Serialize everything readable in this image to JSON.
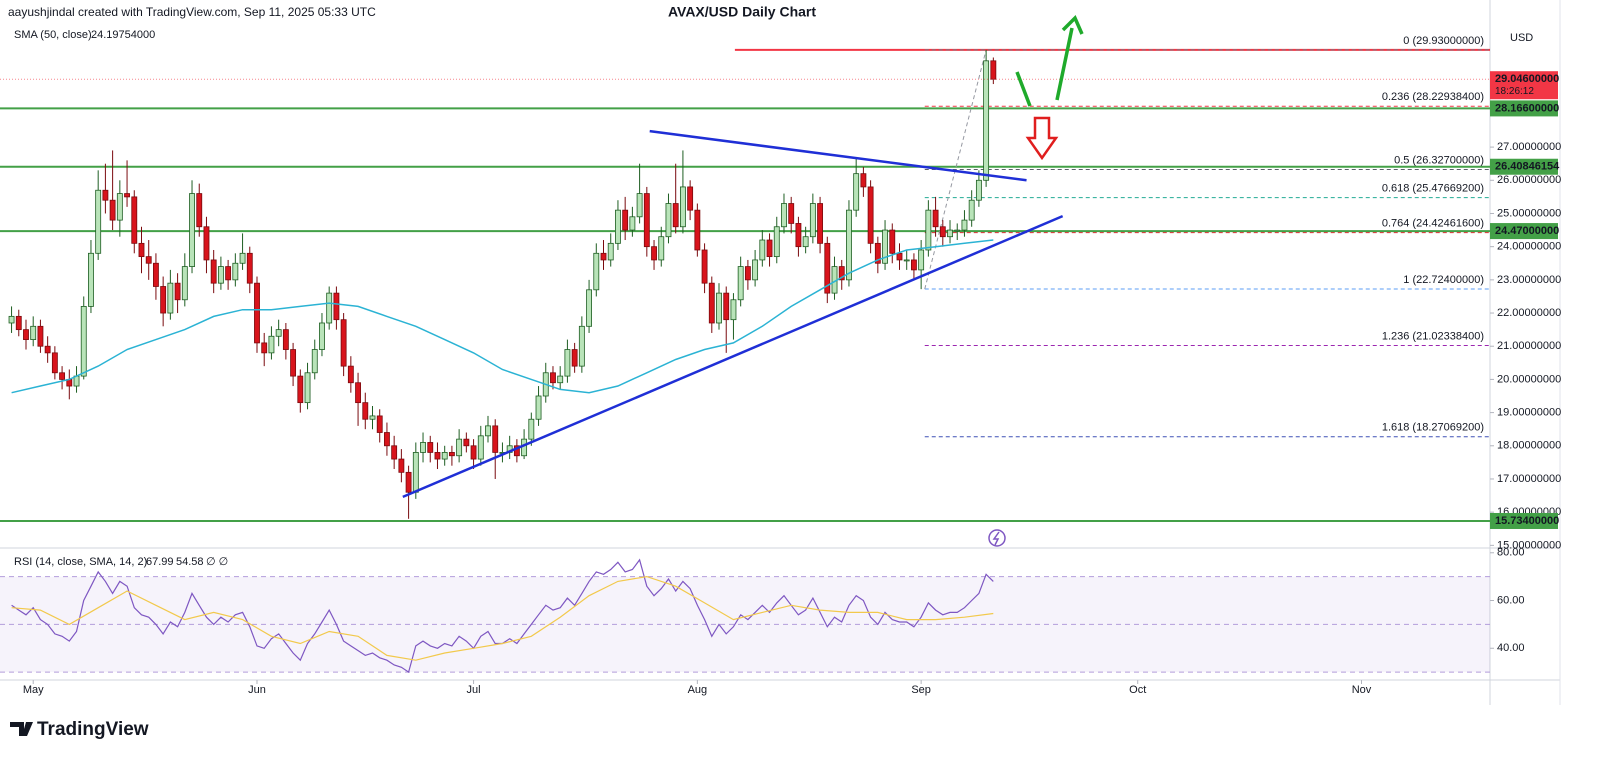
{
  "header": {
    "credit": "aayushjindal created with TradingView.com, Sep 11, 2025 05:33 UTC",
    "title": "AVAX/USD Daily Chart",
    "logo": "TradingView"
  },
  "chart_data": {
    "type": "candlestick",
    "currency": "USD",
    "up_color": "#b9e4b9",
    "up_border": "#1e5e22",
    "down_color": "#d8141c",
    "down_border": "#7a0a0e",
    "xlim": [
      -1.6,
      204.8
    ],
    "xticks": [
      {
        "value": 3,
        "label": "May"
      },
      {
        "value": 34,
        "label": "Jun"
      },
      {
        "value": 64,
        "label": "Jul"
      },
      {
        "value": 95,
        "label": "Aug"
      },
      {
        "value": 126,
        "label": "Sep"
      },
      {
        "value": 156,
        "label": "Oct"
      },
      {
        "value": 187,
        "label": "Nov"
      }
    ],
    "ylim": [
      14.92,
      30.83
    ],
    "yticks": [
      {
        "value": 15,
        "label": "15.00000000"
      },
      {
        "value": 16,
        "label": "16.00000000"
      },
      {
        "value": 17,
        "label": "17.00000000"
      },
      {
        "value": 18,
        "label": "18.00000000"
      },
      {
        "value": 19,
        "label": "19.00000000"
      },
      {
        "value": 20,
        "label": "20.00000000"
      },
      {
        "value": 21,
        "label": "21.00000000"
      },
      {
        "value": 22,
        "label": "22.00000000"
      },
      {
        "value": 23,
        "label": "23.00000000"
      },
      {
        "value": 24,
        "label": "24.00000000"
      },
      {
        "value": 25,
        "label": "25.00000000"
      },
      {
        "value": 26,
        "label": "26.00000000"
      },
      {
        "value": 27,
        "label": "27.00000000"
      }
    ],
    "ohlc": [
      [
        21.7,
        22.2,
        21.4,
        21.9
      ],
      [
        21.9,
        22.1,
        21.3,
        21.5
      ],
      [
        21.5,
        21.8,
        20.9,
        21.2
      ],
      [
        21.2,
        21.9,
        21.0,
        21.6
      ],
      [
        21.6,
        21.8,
        20.8,
        21.0
      ],
      [
        21.0,
        21.3,
        20.5,
        20.8
      ],
      [
        20.8,
        21.0,
        20.0,
        20.2
      ],
      [
        20.2,
        20.4,
        19.7,
        20.0
      ],
      [
        20.0,
        20.3,
        19.4,
        19.8
      ],
      [
        19.8,
        20.4,
        19.6,
        20.1
      ],
      [
        20.1,
        22.5,
        20.0,
        22.2
      ],
      [
        22.2,
        24.2,
        22.0,
        23.8
      ],
      [
        23.8,
        26.3,
        23.6,
        25.7
      ],
      [
        25.7,
        26.5,
        25.0,
        25.4
      ],
      [
        25.4,
        26.9,
        24.5,
        24.8
      ],
      [
        24.8,
        26.0,
        24.3,
        25.6
      ],
      [
        25.6,
        26.6,
        25.2,
        25.5
      ],
      [
        25.5,
        25.7,
        23.8,
        24.1
      ],
      [
        24.1,
        24.6,
        23.2,
        23.7
      ],
      [
        23.7,
        24.2,
        23.0,
        23.5
      ],
      [
        23.5,
        23.8,
        22.4,
        22.8
      ],
      [
        22.8,
        23.1,
        21.6,
        22.0
      ],
      [
        22.0,
        23.3,
        21.8,
        22.9
      ],
      [
        22.9,
        23.2,
        22.0,
        22.4
      ],
      [
        22.4,
        23.8,
        22.2,
        23.4
      ],
      [
        23.4,
        26.0,
        23.2,
        25.6
      ],
      [
        25.6,
        25.9,
        24.3,
        24.6
      ],
      [
        24.6,
        24.9,
        23.2,
        23.6
      ],
      [
        23.6,
        23.9,
        22.6,
        22.9
      ],
      [
        22.9,
        23.7,
        22.7,
        23.4
      ],
      [
        23.4,
        23.6,
        22.7,
        23.0
      ],
      [
        23.0,
        23.8,
        22.8,
        23.5
      ],
      [
        23.5,
        24.4,
        23.3,
        23.8
      ],
      [
        23.8,
        24.0,
        22.6,
        22.9
      ],
      [
        22.9,
        23.1,
        20.8,
        21.1
      ],
      [
        21.1,
        21.4,
        20.4,
        20.8
      ],
      [
        20.8,
        21.6,
        20.6,
        21.3
      ],
      [
        21.3,
        21.8,
        21.0,
        21.5
      ],
      [
        21.5,
        21.7,
        20.6,
        20.9
      ],
      [
        20.9,
        21.1,
        19.8,
        20.1
      ],
      [
        20.1,
        20.3,
        19.0,
        19.3
      ],
      [
        19.3,
        20.5,
        19.1,
        20.2
      ],
      [
        20.2,
        21.2,
        20.0,
        20.9
      ],
      [
        20.9,
        22.0,
        20.7,
        21.7
      ],
      [
        21.7,
        22.8,
        21.5,
        22.6
      ],
      [
        22.6,
        22.8,
        21.5,
        21.8
      ],
      [
        21.8,
        22.0,
        20.1,
        20.4
      ],
      [
        20.4,
        20.7,
        19.6,
        19.9
      ],
      [
        19.9,
        20.2,
        18.6,
        19.3
      ],
      [
        19.3,
        19.6,
        18.5,
        18.8
      ],
      [
        18.8,
        19.2,
        18.5,
        18.9
      ],
      [
        18.9,
        19.1,
        18.1,
        18.4
      ],
      [
        18.4,
        18.7,
        17.7,
        18.0
      ],
      [
        18.0,
        18.3,
        17.3,
        17.6
      ],
      [
        17.6,
        17.9,
        16.9,
        17.2
      ],
      [
        17.2,
        17.4,
        15.8,
        16.6
      ],
      [
        16.6,
        18.1,
        16.4,
        17.8
      ],
      [
        17.8,
        18.4,
        17.5,
        18.1
      ],
      [
        18.1,
        18.3,
        17.5,
        17.8
      ],
      [
        17.8,
        18.1,
        17.3,
        17.6
      ],
      [
        17.6,
        18.0,
        17.4,
        17.8
      ],
      [
        17.8,
        18.0,
        17.4,
        17.7
      ],
      [
        17.7,
        18.5,
        17.5,
        18.2
      ],
      [
        18.2,
        18.4,
        17.8,
        18.0
      ],
      [
        18.0,
        18.2,
        17.3,
        17.6
      ],
      [
        17.6,
        18.6,
        17.4,
        18.3
      ],
      [
        18.3,
        18.9,
        18.1,
        18.6
      ],
      [
        18.6,
        18.8,
        17.0,
        17.8
      ],
      [
        17.8,
        18.1,
        17.5,
        17.8
      ],
      [
        17.8,
        18.3,
        17.6,
        18.0
      ],
      [
        18.0,
        18.2,
        17.5,
        17.7
      ],
      [
        17.7,
        18.5,
        17.6,
        18.2
      ],
      [
        18.2,
        19.0,
        18.0,
        18.8
      ],
      [
        18.8,
        19.8,
        18.6,
        19.5
      ],
      [
        19.5,
        20.5,
        19.3,
        20.2
      ],
      [
        20.2,
        20.4,
        19.7,
        19.9
      ],
      [
        19.9,
        20.4,
        19.7,
        20.1
      ],
      [
        20.1,
        21.2,
        19.9,
        20.9
      ],
      [
        20.9,
        21.1,
        20.2,
        20.4
      ],
      [
        20.4,
        21.9,
        20.2,
        21.6
      ],
      [
        21.6,
        23.0,
        21.4,
        22.7
      ],
      [
        22.7,
        24.1,
        22.5,
        23.8
      ],
      [
        23.8,
        24.2,
        23.3,
        23.6
      ],
      [
        23.6,
        24.4,
        23.4,
        24.1
      ],
      [
        24.1,
        25.4,
        23.9,
        25.1
      ],
      [
        25.1,
        25.5,
        24.2,
        24.5
      ],
      [
        24.5,
        25.2,
        24.3,
        24.9
      ],
      [
        24.9,
        26.5,
        24.7,
        25.6
      ],
      [
        25.6,
        25.8,
        23.7,
        24.0
      ],
      [
        24.0,
        24.2,
        23.3,
        23.6
      ],
      [
        23.6,
        24.6,
        23.4,
        24.3
      ],
      [
        24.3,
        25.6,
        24.1,
        25.3
      ],
      [
        25.3,
        26.5,
        24.4,
        24.6
      ],
      [
        24.6,
        26.9,
        24.4,
        25.8
      ],
      [
        25.8,
        26.0,
        24.8,
        25.1
      ],
      [
        25.1,
        25.3,
        23.7,
        23.9
      ],
      [
        23.9,
        24.1,
        22.6,
        22.9
      ],
      [
        22.9,
        23.1,
        21.4,
        21.7
      ],
      [
        21.7,
        22.9,
        21.5,
        22.6
      ],
      [
        22.6,
        22.8,
        20.8,
        21.8
      ],
      [
        21.8,
        22.6,
        21.2,
        22.4
      ],
      [
        22.4,
        23.7,
        22.2,
        23.4
      ],
      [
        23.4,
        23.6,
        22.7,
        23.0
      ],
      [
        23.0,
        23.9,
        22.8,
        23.6
      ],
      [
        23.6,
        24.5,
        23.4,
        24.2
      ],
      [
        24.2,
        24.4,
        23.4,
        23.7
      ],
      [
        23.7,
        24.9,
        23.5,
        24.6
      ],
      [
        24.6,
        25.6,
        24.4,
        25.3
      ],
      [
        25.3,
        25.5,
        24.4,
        24.7
      ],
      [
        24.7,
        24.9,
        23.7,
        24.0
      ],
      [
        24.0,
        24.6,
        23.8,
        24.3
      ],
      [
        24.3,
        25.6,
        24.1,
        25.3
      ],
      [
        25.3,
        25.5,
        23.8,
        24.1
      ],
      [
        24.1,
        24.3,
        22.3,
        22.6
      ],
      [
        22.6,
        23.7,
        22.4,
        23.4
      ],
      [
        23.4,
        23.6,
        22.7,
        23.0
      ],
      [
        23.0,
        25.4,
        22.8,
        25.1
      ],
      [
        25.1,
        26.7,
        24.9,
        26.2
      ],
      [
        26.2,
        26.4,
        25.5,
        25.8
      ],
      [
        25.8,
        26.0,
        23.8,
        24.1
      ],
      [
        24.1,
        24.3,
        23.2,
        23.5
      ],
      [
        23.5,
        24.8,
        23.3,
        24.5
      ],
      [
        24.5,
        24.7,
        23.5,
        23.8
      ],
      [
        23.8,
        24.1,
        23.3,
        23.6
      ],
      [
        23.6,
        23.9,
        23.3,
        23.6
      ],
      [
        23.6,
        23.8,
        23.0,
        23.3
      ],
      [
        23.3,
        24.2,
        22.72,
        23.9
      ],
      [
        23.9,
        25.4,
        23.7,
        25.1
      ],
      [
        25.1,
        25.5,
        24.3,
        24.6
      ],
      [
        24.6,
        24.8,
        24.0,
        24.3
      ],
      [
        24.3,
        24.8,
        24.1,
        24.5
      ],
      [
        24.5,
        24.7,
        24.2,
        24.5
      ],
      [
        24.5,
        25.1,
        24.3,
        24.8
      ],
      [
        24.8,
        25.7,
        24.6,
        25.4
      ],
      [
        25.4,
        26.3,
        25.2,
        26.0
      ],
      [
        26.0,
        29.93,
        25.8,
        29.6
      ],
      [
        29.6,
        29.7,
        28.9,
        29.046
      ]
    ],
    "sma": {
      "name": "SMA (50, close)",
      "value": {
        "value": 24.19754,
        "label": "24.19754000"
      },
      "color": "#2bb3d4",
      "x": [
        0,
        4,
        8,
        12,
        16,
        20,
        24,
        28,
        32,
        36,
        40,
        44,
        48,
        52,
        56,
        60,
        64,
        68,
        72,
        76,
        80,
        84,
        88,
        92,
        96,
        100,
        104,
        108,
        112,
        116,
        120,
        124,
        128,
        132,
        136
      ],
      "values": [
        19.6,
        19.8,
        20.0,
        20.4,
        20.9,
        21.2,
        21.5,
        21.9,
        22.1,
        22.1,
        22.2,
        22.3,
        22.2,
        21.9,
        21.6,
        21.2,
        20.8,
        20.3,
        20.0,
        19.7,
        19.6,
        19.8,
        20.2,
        20.6,
        20.9,
        21.1,
        21.6,
        22.2,
        22.7,
        23.2,
        23.6,
        23.9,
        24.0,
        24.1,
        24.2
      ]
    },
    "last_price": {
      "value": 29.046,
      "label": "29.04600000",
      "countdown": "18:26:12",
      "color": "#f23645"
    },
    "levels": [
      {
        "value": 28.166,
        "label": "28.16600000",
        "color": "#43a047"
      },
      {
        "value": 26.40846154,
        "label": "26.40846154",
        "color": "#43a047"
      },
      {
        "value": 24.47,
        "label": "24.47000000",
        "color": "#43a047"
      },
      {
        "value": 15.734,
        "label": "15.73400000",
        "color": "#43a047"
      }
    ],
    "resistance": {
      "value": 29.93,
      "start": 100.2,
      "color": "#f23645"
    },
    "fib": {
      "start": 126.5,
      "levels": [
        {
          "label": "0 (29.93000000)",
          "price": 29.93,
          "color": "#787b86"
        },
        {
          "label": "0.236 (28.22938400)",
          "price": 28.229384,
          "color": "#f23645"
        },
        {
          "label": "0.5 (26.32700000)",
          "price": 26.327,
          "color": "#5d606b"
        },
        {
          "label": "0.618 (25.47669200)",
          "price": 25.476692,
          "color": "#22ab94"
        },
        {
          "label": "0.764 (24.42461600)",
          "price": 24.424616,
          "color": "#d32f2f"
        },
        {
          "label": "1 (22.72400000)",
          "price": 22.724,
          "color": "#5b9cf6"
        },
        {
          "label": "1.236 (21.02338400)",
          "price": 21.023384,
          "color": "#9c27b0"
        },
        {
          "label": "1.618 (18.27069200)",
          "price": 18.270692,
          "color": "#3f51b5"
        }
      ]
    },
    "trendlines": [
      {
        "points": [
          [
            88.4,
            27.48
          ],
          [
            140.6,
            26.0
          ]
        ],
        "color": "#1f2fd6"
      },
      {
        "points": [
          [
            54.2,
            16.46
          ],
          [
            145.6,
            24.92
          ]
        ],
        "color": "#1f2fd6"
      }
    ],
    "rsi": {
      "name": "RSI (14, close, SMA, 14, 2)",
      "value": 67.99,
      "ma_value": 54.58,
      "extra": "∅ ∅",
      "color": "#7e57c2",
      "ma_color": "#f2c94c",
      "ylim": [
        26.7,
        82
      ],
      "yticks": [
        {
          "value": 80,
          "label": "80.00"
        },
        {
          "value": 60,
          "label": "60.00"
        },
        {
          "value": 40,
          "label": "40.00"
        }
      ],
      "bands": [
        70,
        50,
        30
      ],
      "values": [
        58,
        56,
        54,
        57,
        52,
        50,
        46,
        45,
        43,
        47,
        60,
        66,
        72,
        68,
        63,
        68,
        66,
        57,
        54,
        53,
        50,
        46,
        51,
        49,
        55,
        63,
        58,
        53,
        50,
        53,
        51,
        54,
        55,
        49,
        41,
        40,
        44,
        46,
        42,
        38,
        35,
        42,
        46,
        51,
        56,
        50,
        43,
        41,
        39,
        37,
        38,
        36,
        35,
        33,
        32,
        30,
        41,
        43,
        41,
        40,
        42,
        41,
        45,
        43,
        40,
        45,
        47,
        42,
        42,
        44,
        42,
        46,
        50,
        54,
        58,
        56,
        57,
        61,
        58,
        63,
        68,
        72,
        71,
        73,
        76,
        72,
        73,
        77,
        66,
        62,
        65,
        69,
        64,
        68,
        65,
        58,
        52,
        45,
        50,
        46,
        49,
        54,
        52,
        55,
        58,
        55,
        59,
        62,
        58,
        54,
        56,
        61,
        55,
        49,
        53,
        51,
        58,
        62,
        60,
        53,
        50,
        55,
        52,
        51,
        51,
        49,
        53,
        59,
        56,
        54,
        55,
        55,
        57,
        60,
        63,
        71,
        67.99
      ],
      "ma_x": [
        0,
        4,
        8,
        12,
        16,
        20,
        24,
        28,
        32,
        36,
        40,
        44,
        48,
        52,
        56,
        60,
        64,
        68,
        72,
        76,
        80,
        84,
        88,
        92,
        96,
        100,
        104,
        108,
        112,
        116,
        120,
        124,
        128,
        132,
        136
      ],
      "ma_values": [
        57,
        56,
        50,
        57,
        64,
        58,
        52,
        55,
        52,
        45,
        42,
        47,
        45,
        37,
        35,
        38,
        40,
        42,
        45,
        53,
        62,
        68,
        70,
        66,
        59,
        52,
        55,
        58,
        56,
        55,
        55,
        52,
        52,
        53,
        54.58
      ]
    }
  }
}
